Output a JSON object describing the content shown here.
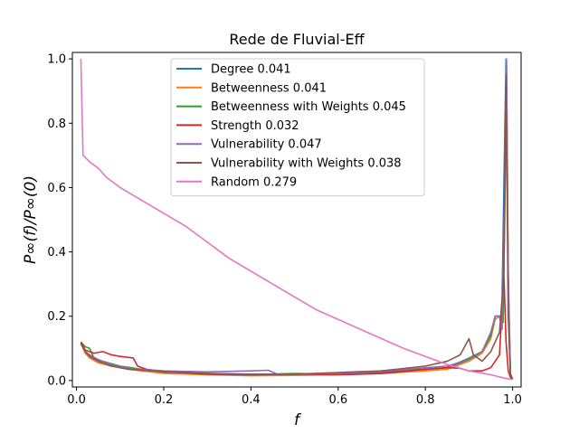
{
  "chart_data": {
    "type": "line",
    "title": "Rede de Fluvial-Eff",
    "xlabel": "f",
    "ylabel": "P∞(f)/P∞(0)",
    "xlim": [
      -0.0095,
      1.0195
    ],
    "ylim": [
      -0.02,
      1.02
    ],
    "x_ticks": [
      0.0,
      0.2,
      0.4,
      0.6,
      0.8,
      1.0
    ],
    "x_tick_labels": [
      "0.0",
      "0.2",
      "0.4",
      "0.6",
      "0.8",
      "1.0"
    ],
    "y_ticks": [
      0.0,
      0.2,
      0.4,
      0.6,
      0.8,
      1.0
    ],
    "y_tick_labels": [
      "0.0",
      "0.2",
      "0.4",
      "0.6",
      "0.8",
      "1.0"
    ],
    "grid": false,
    "legend_position": "top-center",
    "series": [
      {
        "name": "Degree 0.041",
        "color": "#1f77b4",
        "points": [
          [
            0.01,
            0.115
          ],
          [
            0.02,
            0.09
          ],
          [
            0.03,
            0.075
          ],
          [
            0.05,
            0.06
          ],
          [
            0.07,
            0.05
          ],
          [
            0.1,
            0.04
          ],
          [
            0.15,
            0.03
          ],
          [
            0.2,
            0.025
          ],
          [
            0.3,
            0.022
          ],
          [
            0.4,
            0.02
          ],
          [
            0.5,
            0.02
          ],
          [
            0.6,
            0.022
          ],
          [
            0.7,
            0.025
          ],
          [
            0.8,
            0.035
          ],
          [
            0.85,
            0.04
          ],
          [
            0.9,
            0.065
          ],
          [
            0.93,
            0.09
          ],
          [
            0.95,
            0.14
          ],
          [
            0.96,
            0.2
          ],
          [
            0.97,
            0.2
          ],
          [
            0.975,
            0.17
          ],
          [
            0.98,
            0.6
          ],
          [
            0.985,
            1.0
          ],
          [
            0.99,
            0.3
          ],
          [
            0.995,
            0.02
          ],
          [
            1.0,
            0.005
          ]
        ]
      },
      {
        "name": "Betweenness 0.041",
        "color": "#ff7f0e",
        "points": [
          [
            0.01,
            0.115
          ],
          [
            0.02,
            0.085
          ],
          [
            0.03,
            0.07
          ],
          [
            0.05,
            0.055
          ],
          [
            0.08,
            0.045
          ],
          [
            0.12,
            0.035
          ],
          [
            0.2,
            0.022
          ],
          [
            0.3,
            0.018
          ],
          [
            0.4,
            0.015
          ],
          [
            0.5,
            0.016
          ],
          [
            0.6,
            0.018
          ],
          [
            0.7,
            0.022
          ],
          [
            0.8,
            0.03
          ],
          [
            0.85,
            0.035
          ],
          [
            0.9,
            0.06
          ],
          [
            0.93,
            0.085
          ],
          [
            0.95,
            0.13
          ],
          [
            0.96,
            0.19
          ],
          [
            0.97,
            0.2
          ],
          [
            0.978,
            0.18
          ],
          [
            0.982,
            0.5
          ],
          [
            0.986,
            0.95
          ],
          [
            0.99,
            0.25
          ],
          [
            0.995,
            0.015
          ],
          [
            1.0,
            0.005
          ]
        ]
      },
      {
        "name": "Betweenness with Weights 0.045",
        "color": "#2ca02c",
        "points": [
          [
            0.01,
            0.12
          ],
          [
            0.02,
            0.105
          ],
          [
            0.03,
            0.1
          ],
          [
            0.04,
            0.07
          ],
          [
            0.06,
            0.06
          ],
          [
            0.1,
            0.045
          ],
          [
            0.15,
            0.035
          ],
          [
            0.2,
            0.028
          ],
          [
            0.3,
            0.02
          ],
          [
            0.4,
            0.018
          ],
          [
            0.5,
            0.022
          ],
          [
            0.6,
            0.02
          ],
          [
            0.7,
            0.03
          ],
          [
            0.8,
            0.035
          ],
          [
            0.85,
            0.04
          ],
          [
            0.9,
            0.07
          ],
          [
            0.93,
            0.09
          ],
          [
            0.95,
            0.14
          ],
          [
            0.96,
            0.2
          ],
          [
            0.97,
            0.2
          ],
          [
            0.978,
            0.18
          ],
          [
            0.982,
            0.55
          ],
          [
            0.986,
            0.98
          ],
          [
            0.99,
            0.3
          ],
          [
            0.995,
            0.02
          ],
          [
            1.0,
            0.005
          ]
        ]
      },
      {
        "name": "Strength 0.032",
        "color": "#d62728",
        "points": [
          [
            0.01,
            0.12
          ],
          [
            0.02,
            0.095
          ],
          [
            0.04,
            0.085
          ],
          [
            0.06,
            0.09
          ],
          [
            0.08,
            0.08
          ],
          [
            0.1,
            0.075
          ],
          [
            0.13,
            0.07
          ],
          [
            0.14,
            0.045
          ],
          [
            0.16,
            0.035
          ],
          [
            0.2,
            0.028
          ],
          [
            0.3,
            0.02
          ],
          [
            0.4,
            0.018
          ],
          [
            0.5,
            0.02
          ],
          [
            0.6,
            0.018
          ],
          [
            0.7,
            0.022
          ],
          [
            0.8,
            0.035
          ],
          [
            0.85,
            0.04
          ],
          [
            0.88,
            0.038
          ],
          [
            0.9,
            0.03
          ],
          [
            0.93,
            0.03
          ],
          [
            0.95,
            0.04
          ],
          [
            0.97,
            0.08
          ],
          [
            0.98,
            0.33
          ],
          [
            0.985,
            0.12
          ],
          [
            0.99,
            0.03
          ],
          [
            0.995,
            0.01
          ],
          [
            1.0,
            0.005
          ]
        ]
      },
      {
        "name": "Vulnerability 0.047",
        "color": "#9467bd",
        "points": [
          [
            0.01,
            0.115
          ],
          [
            0.02,
            0.09
          ],
          [
            0.03,
            0.08
          ],
          [
            0.05,
            0.065
          ],
          [
            0.08,
            0.05
          ],
          [
            0.12,
            0.038
          ],
          [
            0.2,
            0.03
          ],
          [
            0.3,
            0.027
          ],
          [
            0.4,
            0.03
          ],
          [
            0.44,
            0.032
          ],
          [
            0.46,
            0.02
          ],
          [
            0.5,
            0.02
          ],
          [
            0.6,
            0.022
          ],
          [
            0.7,
            0.028
          ],
          [
            0.8,
            0.04
          ],
          [
            0.85,
            0.045
          ],
          [
            0.9,
            0.065
          ],
          [
            0.93,
            0.09
          ],
          [
            0.95,
            0.15
          ],
          [
            0.96,
            0.2
          ],
          [
            0.97,
            0.2
          ],
          [
            0.976,
            0.16
          ],
          [
            0.982,
            0.6
          ],
          [
            0.986,
            1.0
          ],
          [
            0.99,
            0.35
          ],
          [
            0.995,
            0.02
          ],
          [
            1.0,
            0.005
          ]
        ]
      },
      {
        "name": "Vulnerability with Weights 0.038",
        "color": "#8c564b",
        "points": [
          [
            0.01,
            0.115
          ],
          [
            0.02,
            0.09
          ],
          [
            0.03,
            0.075
          ],
          [
            0.05,
            0.06
          ],
          [
            0.08,
            0.045
          ],
          [
            0.12,
            0.035
          ],
          [
            0.2,
            0.028
          ],
          [
            0.3,
            0.022
          ],
          [
            0.4,
            0.018
          ],
          [
            0.5,
            0.02
          ],
          [
            0.6,
            0.025
          ],
          [
            0.7,
            0.03
          ],
          [
            0.8,
            0.045
          ],
          [
            0.85,
            0.06
          ],
          [
            0.88,
            0.08
          ],
          [
            0.9,
            0.13
          ],
          [
            0.91,
            0.08
          ],
          [
            0.93,
            0.06
          ],
          [
            0.95,
            0.09
          ],
          [
            0.97,
            0.15
          ],
          [
            0.98,
            0.33
          ],
          [
            0.985,
            0.95
          ],
          [
            0.99,
            0.2
          ],
          [
            0.995,
            0.02
          ],
          [
            1.0,
            0.005
          ]
        ]
      },
      {
        "name": "Random 0.279",
        "color": "#e377c2",
        "points": [
          [
            0.01,
            1.0
          ],
          [
            0.015,
            0.7
          ],
          [
            0.03,
            0.68
          ],
          [
            0.05,
            0.66
          ],
          [
            0.07,
            0.63
          ],
          [
            0.1,
            0.6
          ],
          [
            0.15,
            0.56
          ],
          [
            0.2,
            0.52
          ],
          [
            0.25,
            0.48
          ],
          [
            0.3,
            0.43
          ],
          [
            0.35,
            0.38
          ],
          [
            0.4,
            0.34
          ],
          [
            0.45,
            0.3
          ],
          [
            0.5,
            0.26
          ],
          [
            0.55,
            0.22
          ],
          [
            0.6,
            0.19
          ],
          [
            0.65,
            0.16
          ],
          [
            0.7,
            0.13
          ],
          [
            0.75,
            0.1
          ],
          [
            0.8,
            0.075
          ],
          [
            0.85,
            0.05
          ],
          [
            0.9,
            0.03
          ],
          [
            0.95,
            0.018
          ],
          [
            0.98,
            0.008
          ],
          [
            1.0,
            0.003
          ]
        ]
      }
    ]
  }
}
